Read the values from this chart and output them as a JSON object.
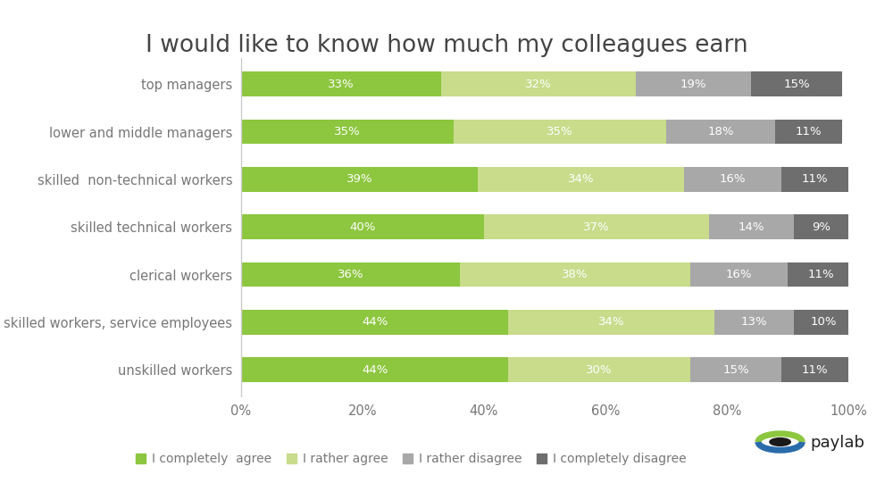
{
  "title": "I would like to know how much my colleagues earn",
  "categories": [
    "top managers",
    "lower and middle managers",
    "skilled  non-technical workers",
    "skilled technical workers",
    "clerical workers",
    "skilled workers, service employees",
    "unskilled workers"
  ],
  "series": [
    {
      "label": "I completely  agree",
      "color": "#8dc63f",
      "values": [
        33,
        35,
        39,
        40,
        36,
        44,
        44
      ]
    },
    {
      "label": "I rather agree",
      "color": "#c8dc8c",
      "values": [
        32,
        35,
        34,
        37,
        38,
        34,
        30
      ]
    },
    {
      "label": "I rather disagree",
      "color": "#a8a8a8",
      "values": [
        19,
        18,
        16,
        14,
        16,
        13,
        15
      ]
    },
    {
      "label": "I completely disagree",
      "color": "#6e6e6e",
      "values": [
        15,
        11,
        11,
        9,
        11,
        10,
        11
      ]
    }
  ],
  "xlim": [
    0,
    100
  ],
  "xticks": [
    0,
    20,
    40,
    60,
    80,
    100
  ],
  "xticklabels": [
    "0%",
    "20%",
    "40%",
    "60%",
    "80%",
    "100%"
  ],
  "bar_height": 0.52,
  "title_fontsize": 19,
  "tick_fontsize": 10.5,
  "label_fontsize": 9.5,
  "legend_fontsize": 10,
  "background_color": "#ffffff",
  "text_color": "#777777",
  "title_color": "#444444",
  "spine_color": "#cccccc"
}
